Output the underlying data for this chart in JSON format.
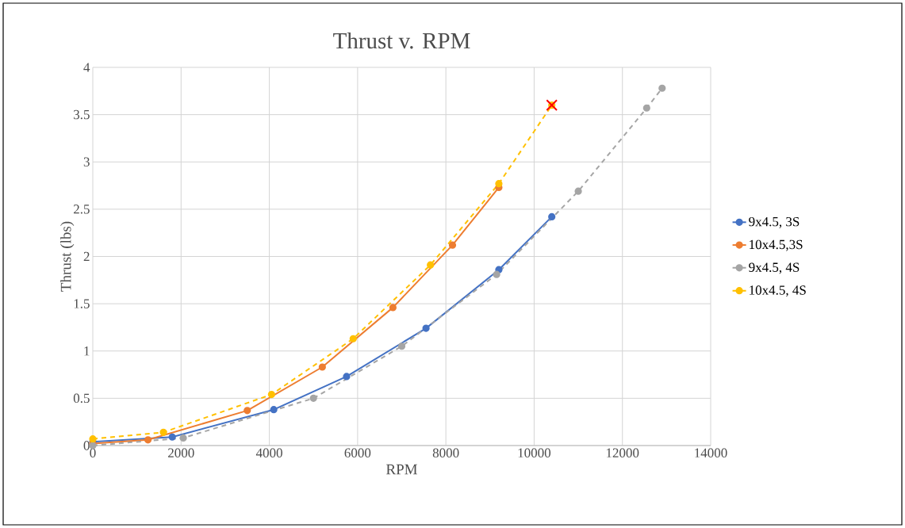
{
  "chart_data": {
    "type": "line",
    "title": "Thrust v. RPM",
    "xlabel": "RPM",
    "ylabel": "Thrust (lbs)",
    "xlim": [
      0,
      14000
    ],
    "ylim": [
      0,
      4
    ],
    "xticks": [
      0,
      2000,
      4000,
      6000,
      8000,
      10000,
      12000,
      14000
    ],
    "yticks": [
      0,
      0.5,
      1,
      1.5,
      2,
      2.5,
      3,
      3.5,
      4
    ],
    "grid": true,
    "legend": "right",
    "marker": "circle",
    "series": [
      {
        "name": "9x4.5, 3S",
        "color": "#4472c4",
        "line_style": "solid",
        "x": [
          0,
          1800,
          4100,
          5750,
          7550,
          9200,
          10400
        ],
        "values": [
          0.04,
          0.09,
          0.38,
          0.73,
          1.24,
          1.86,
          2.42
        ]
      },
      {
        "name": "10x4.5,3S",
        "color": "#ed7d31",
        "line_style": "solid",
        "x": [
          0,
          1250,
          3500,
          5200,
          6800,
          8150,
          9200
        ],
        "values": [
          0.02,
          0.06,
          0.37,
          0.83,
          1.46,
          2.12,
          2.73
        ]
      },
      {
        "name": "9x4.5, 4S",
        "color": "#a5a5a5",
        "line_style": "dashed",
        "x": [
          0,
          2050,
          5000,
          7000,
          9150,
          11000,
          12550,
          12900
        ],
        "values": [
          0.0,
          0.08,
          0.5,
          1.05,
          1.81,
          2.69,
          3.57,
          3.78
        ]
      },
      {
        "name": "10x4.5, 4S",
        "color": "#ffc000",
        "line_style": "dashed",
        "x": [
          0,
          1600,
          4050,
          5900,
          7650,
          9200,
          10400
        ],
        "values": [
          0.07,
          0.14,
          0.54,
          1.13,
          1.91,
          2.77,
          3.6
        ]
      },
      {
        "type": "scatter",
        "marker": "cross",
        "color": "#ff0000",
        "x": [
          10400
        ],
        "values": [
          3.6
        ]
      }
    ]
  }
}
